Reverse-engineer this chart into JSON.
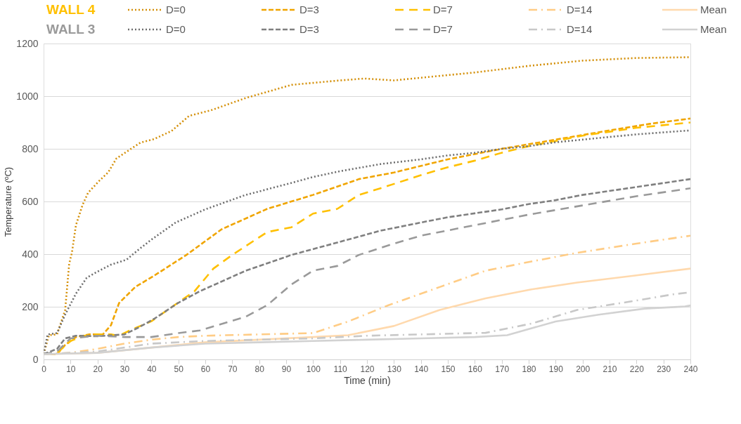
{
  "chart_data": {
    "type": "line",
    "xlabel": "Time (min)",
    "ylabel": "Temperature (ºC)",
    "annotations": [
      "WALL 4",
      "WALL 3"
    ],
    "xlim": [
      0,
      240
    ],
    "ylim": [
      0,
      1200
    ],
    "xticks": [
      0,
      10,
      20,
      30,
      40,
      50,
      60,
      70,
      80,
      90,
      100,
      110,
      120,
      130,
      140,
      150,
      160,
      170,
      180,
      190,
      200,
      210,
      220,
      230,
      240
    ],
    "yticks": [
      0,
      200,
      400,
      600,
      800,
      1000,
      1200
    ],
    "grid": "y",
    "legend": "top",
    "series": [
      {
        "name": "D=0",
        "color": "#d4900a",
        "line_style": "dotted",
        "x": [
          0,
          2,
          5,
          8,
          9.5,
          10.5,
          12,
          14.5,
          16.5,
          20.5,
          24,
          27,
          32,
          36,
          41,
          47.5,
          54,
          62,
          75,
          92,
          109,
          119,
          130,
          140,
          160,
          180,
          200,
          220,
          240
        ],
        "values": [
          20,
          92,
          95,
          188,
          363,
          405,
          510,
          588,
          633,
          677,
          711,
          763,
          797,
          824,
          837,
          868,
          925,
          946,
          993,
          1043,
          1059,
          1067,
          1060,
          1070,
          1090,
          1115,
          1135,
          1145,
          1148
        ]
      },
      {
        "name": "D=3",
        "color": "#f0a500",
        "line_style": "dashed",
        "x": [
          0,
          5,
          8,
          12,
          17,
          22,
          25,
          28,
          34,
          41,
          53,
          66,
          83,
          100,
          117,
          130,
          150,
          170,
          190,
          210,
          225,
          240
        ],
        "values": [
          20,
          20,
          55,
          85,
          95,
          95,
          130,
          214,
          275,
          318,
          397,
          494,
          572,
          625,
          685,
          710,
          760,
          800,
          835,
          870,
          895,
          915
        ]
      },
      {
        "name": "D=7",
        "color": "#ffc000",
        "line_style": "dashed",
        "x": [
          0,
          5,
          10,
          15,
          20,
          25,
          28,
          32,
          40,
          46,
          56,
          63,
          70,
          83,
          92,
          100,
          109,
          117,
          125,
          140,
          150,
          160,
          170,
          180,
          200,
          220,
          240
        ],
        "values": [
          20,
          25,
          70,
          90,
          95,
          95,
          90,
          110,
          145,
          188,
          259,
          345,
          397,
          484,
          502,
          554,
          572,
          625,
          650,
          700,
          730,
          755,
          785,
          810,
          850,
          880,
          900
        ]
      },
      {
        "name": "D=14",
        "color": "#ffcc85",
        "line_style": "dashed",
        "x": [
          0,
          10,
          20,
          30,
          40,
          50,
          60,
          80,
          100,
          113,
          128,
          147,
          164,
          180,
          198,
          220,
          238,
          240
        ],
        "values": [
          20,
          25,
          40,
          60,
          75,
          85,
          90,
          95,
          100,
          144,
          206,
          275,
          337,
          370,
          405,
          440,
          467,
          470
        ]
      },
      {
        "name": "Mean",
        "color": "#ffd9ad",
        "line_style": "solid",
        "x": [
          0,
          20,
          40,
          60,
          80,
          100,
          113,
          130,
          147,
          164,
          181,
          198,
          219,
          240
        ],
        "values": [
          20,
          25,
          45,
          65,
          75,
          85,
          92,
          127,
          188,
          232,
          266,
          292,
          318,
          345
        ]
      },
      {
        "name": "D=0",
        "color": "#6e6e6e",
        "line_style": "dotted",
        "x": [
          0,
          1.5,
          5,
          8,
          12,
          16,
          18.8,
          25,
          30.8,
          35,
          40,
          49,
          60,
          75,
          90,
          100,
          110,
          125,
          140,
          150,
          160,
          170,
          180,
          190,
          200,
          220,
          240
        ],
        "values": [
          20,
          95,
          100,
          170,
          250,
          310,
          327,
          360,
          379,
          415,
          455,
          520,
          570,
          625,
          665,
          693,
          715,
          742,
          760,
          775,
          785,
          800,
          810,
          825,
          835,
          855,
          870
        ]
      },
      {
        "name": "D=3",
        "color": "#808080",
        "line_style": "dashed",
        "x": [
          0,
          5,
          8,
          12,
          20,
          30,
          35,
          41,
          50,
          58,
          75,
          92,
          109,
          125,
          140,
          150,
          160,
          170,
          180,
          190,
          200,
          220,
          240
        ],
        "values": [
          20,
          40,
          80,
          90,
          88,
          95,
          120,
          154,
          215,
          259,
          337,
          397,
          444,
          489,
          520,
          540,
          555,
          570,
          590,
          605,
          625,
          655,
          685
        ]
      },
      {
        "name": "D=7",
        "color": "#9a9a9a",
        "line_style": "dashed",
        "x": [
          0,
          5,
          10,
          20,
          30,
          40,
          50,
          58,
          75,
          83,
          92,
          100,
          109,
          117,
          130,
          140,
          150,
          160,
          170,
          180,
          200,
          220,
          240
        ],
        "values": [
          20,
          30,
          80,
          90,
          85,
          85,
          100,
          110,
          162,
          206,
          285,
          337,
          355,
          397,
          440,
          470,
          490,
          510,
          530,
          550,
          585,
          620,
          650
        ]
      },
      {
        "name": "D=14",
        "color": "#c8c8c8",
        "line_style": "dashed",
        "x": [
          0,
          20,
          40,
          60,
          100,
          120,
          140,
          164,
          181,
          198,
          219,
          234,
          240
        ],
        "values": [
          20,
          30,
          60,
          70,
          80,
          90,
          95,
          101,
          136,
          188,
          222,
          248,
          255
        ]
      },
      {
        "name": "Mean",
        "color": "#d2d2d2",
        "line_style": "solid",
        "x": [
          0,
          20,
          40,
          60,
          80,
          100,
          120,
          140,
          160,
          172,
          190,
          206,
          223,
          238,
          240
        ],
        "values": [
          20,
          25,
          45,
          60,
          65,
          70,
          75,
          80,
          85,
          92,
          144,
          170,
          193,
          201,
          205
        ]
      }
    ]
  }
}
